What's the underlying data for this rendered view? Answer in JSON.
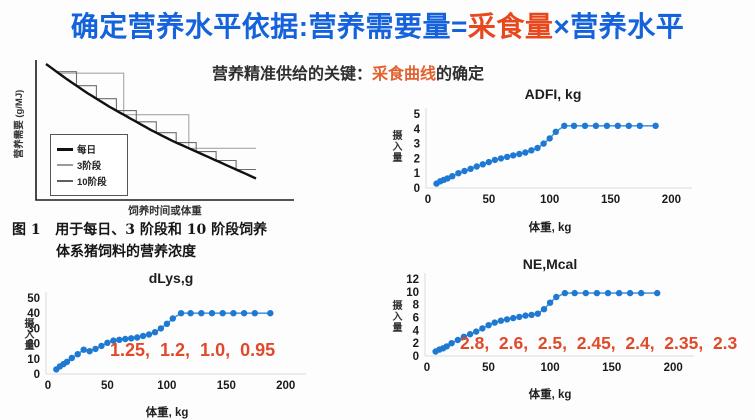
{
  "slide_title": {
    "part1": "确定营养水平依据:营养需要量=",
    "highlight": "采食量",
    "part2": "×营养水平"
  },
  "subtitle": {
    "part1": "营养精准供给的关键：",
    "highlight": "采食曲线",
    "part2": "的确定"
  },
  "figure_caption": {
    "line1": "图 1   用于每日、3 阶段和 10 阶段饲养",
    "line2": "体系猪饲料的营养浓度"
  },
  "colors": {
    "title_blue": "#1563dc",
    "accent_red": "#e8481e",
    "annotation_red": "#e0492a",
    "marker_blue": "#1d79d2",
    "line_blue": "#4f97dd",
    "curve_black": "#111111"
  },
  "chart_data": [
    {
      "id": "concept",
      "type": "line",
      "title": "",
      "xlabel": "饲养时间或体重",
      "ylabel": "营养需要 (g/MJ)",
      "legend": [
        "每日",
        "3阶段",
        "10阶段"
      ],
      "description": "营养需要随饲养时间/体重下降的曲线，与3阶段、10阶段阶梯式饲喂方案对比",
      "curve_t": [
        0,
        0.1,
        0.2,
        0.3,
        0.4,
        0.5,
        0.6,
        0.7,
        0.8,
        0.9,
        1
      ],
      "curve_v": [
        0,
        0.13,
        0.25,
        0.36,
        0.46,
        0.56,
        0.65,
        0.73,
        0.81,
        0.89,
        0.97
      ],
      "stage3_bounds": [
        0.06,
        0.37,
        0.68,
        1
      ],
      "stage10_bounds": [
        0.05,
        0.145,
        0.24,
        0.335,
        0.43,
        0.525,
        0.62,
        0.715,
        0.81,
        0.905,
        1
      ]
    },
    {
      "id": "adfi",
      "type": "scatter",
      "title": "ADFI, kg",
      "ylabel": "摄入量",
      "xlabel": "体重, kg",
      "x": [
        7,
        10,
        13,
        16,
        20,
        25,
        30,
        35,
        40,
        45,
        50,
        55,
        60,
        65,
        70,
        75,
        80,
        85,
        90,
        95,
        100,
        105,
        112,
        120,
        129,
        138,
        147,
        156,
        165,
        174,
        187
      ],
      "y": [
        0.3,
        0.45,
        0.55,
        0.65,
        0.8,
        1.0,
        1.15,
        1.3,
        1.45,
        1.6,
        1.75,
        1.9,
        2.0,
        2.1,
        2.2,
        2.3,
        2.4,
        2.55,
        2.7,
        3.0,
        3.35,
        3.8,
        4.2,
        4.2,
        4.2,
        4.2,
        4.2,
        4.2,
        4.2,
        4.2,
        4.2
      ],
      "xlim": [
        0,
        212
      ],
      "ylim": [
        0,
        5
      ],
      "xticks": [
        0,
        50,
        100,
        150,
        200
      ],
      "yticks": [
        0,
        1,
        2,
        3,
        4,
        5
      ]
    },
    {
      "id": "dlys",
      "type": "scatter",
      "title": "dLys,g",
      "ylabel": "摄入量",
      "xlabel": "体重, kg",
      "x": [
        7,
        10,
        13,
        16,
        20,
        25,
        30,
        35,
        40,
        45,
        50,
        55,
        60,
        65,
        70,
        75,
        80,
        85,
        90,
        95,
        100,
        105,
        112,
        120,
        129,
        138,
        147,
        156,
        165,
        174,
        187
      ],
      "y": [
        3,
        5,
        6.5,
        8,
        10.5,
        13,
        16,
        15,
        16.5,
        18.5,
        20.5,
        22,
        22.5,
        23,
        23.5,
        24,
        25,
        26,
        27.5,
        30,
        33,
        36.5,
        40,
        40,
        40,
        40,
        40,
        40,
        40,
        40,
        40
      ],
      "xlim": [
        0,
        212
      ],
      "ylim": [
        0,
        50
      ],
      "xticks": [
        0,
        50,
        100,
        150,
        200
      ],
      "yticks": [
        0,
        10,
        20,
        30,
        40,
        50
      ],
      "annotation": "1.25,  1.2,  1.0,  0.95"
    },
    {
      "id": "ne",
      "type": "scatter",
      "title": "NE,Mcal",
      "ylabel": "摄入量",
      "xlabel": "体重, kg",
      "x": [
        7,
        10,
        13,
        16,
        20,
        25,
        30,
        35,
        40,
        45,
        50,
        55,
        60,
        65,
        70,
        75,
        80,
        85,
        90,
        95,
        100,
        105,
        112,
        120,
        129,
        138,
        147,
        156,
        165,
        174,
        187
      ],
      "y": [
        0.7,
        1.0,
        1.2,
        1.5,
        2.0,
        2.5,
        3.0,
        3.4,
        3.8,
        4.3,
        4.8,
        5.2,
        5.5,
        5.7,
        5.9,
        6.1,
        6.3,
        6.4,
        6.6,
        7.3,
        8.3,
        9.2,
        9.8,
        9.8,
        9.8,
        9.8,
        9.8,
        9.8,
        9.8,
        9.8,
        9.8
      ],
      "xlim": [
        0,
        212
      ],
      "ylim": [
        0,
        12
      ],
      "xticks": [
        0,
        50,
        100,
        150,
        200
      ],
      "yticks": [
        0,
        2,
        4,
        6,
        8,
        10,
        12
      ],
      "annotation": "2.8,  2.6,  2.5,  2.45,  2.4,  2.35,  2.3"
    }
  ]
}
